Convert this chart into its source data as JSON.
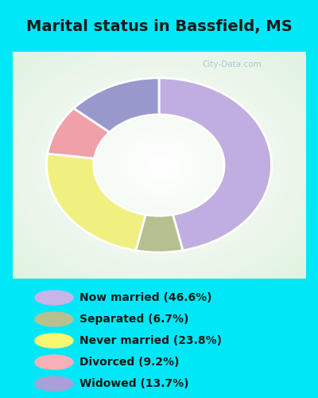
{
  "title": "Marital status in Bassfield, MS",
  "title_fontsize": 14,
  "labels": [
    "Now married (46.6%)",
    "Separated (6.7%)",
    "Never married (23.8%)",
    "Divorced (9.2%)",
    "Widowed (13.7%)"
  ],
  "values": [
    46.6,
    6.7,
    23.8,
    9.2,
    13.7
  ],
  "colors": [
    "#c0aee0",
    "#b5bf90",
    "#f0f080",
    "#f0a0a8",
    "#9898cc"
  ],
  "legend_colors": [
    "#c8b4e8",
    "#b8c090",
    "#f8f870",
    "#f8b0b8",
    "#a8a0d8"
  ],
  "bg_cyan": "#00e8f8",
  "bg_chart_light": "#e8f8ee",
  "donut_inner_r": 0.58,
  "donut_outer_r": 1.0,
  "watermark": "City-Data.com",
  "figsize": [
    4.0,
    5.0
  ],
  "dpi": 100
}
